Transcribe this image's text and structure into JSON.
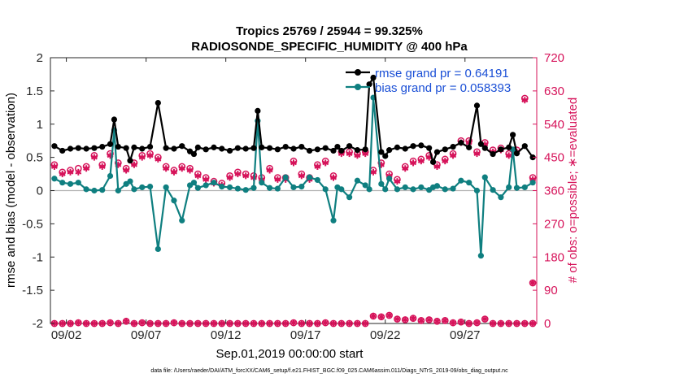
{
  "chart_data": {
    "type": "line",
    "title": "Tropics 25769 / 25944 = 99.325%",
    "subtitle": "RADIOSONDE_SPECIFIC_HUMIDITY @ 400 hPa",
    "xlabel": "Sep.01,2019 00:00:00 start",
    "ylabel_left": "rmse and bias (model - observation)",
    "ylabel_right": "# of obs: o=possible; ∗=evaluated",
    "footer": "data file: /Users/raeder/DAI/ATM_forcXX/CAM6_setup/f.e21.FHIST_BGC.f09_025.CAM6assim.011/Diags_NTrS_2019-09/obs_diag_output.nc",
    "xlim": [
      0.5,
      31.0
    ],
    "ylim_left": [
      -2,
      2
    ],
    "ylim_right": [
      0,
      720
    ],
    "xticks": [
      1.5,
      6.5,
      11.5,
      16.5,
      21.5,
      26.5
    ],
    "xtick_labels": [
      "09/02",
      "09/07",
      "09/12",
      "09/17",
      "09/22",
      "09/27"
    ],
    "yticks_left": [
      -2,
      -1.5,
      -1,
      -0.5,
      0,
      0.5,
      1,
      1.5,
      2
    ],
    "ytick_labels_left": [
      "-2",
      "-1.5",
      "-1",
      "-0.5",
      "0",
      "0.5",
      "1",
      "1.5",
      "2"
    ],
    "yticks_right": [
      0,
      90,
      180,
      270,
      360,
      450,
      540,
      630,
      720
    ],
    "ytick_labels_right": [
      "0",
      "90",
      "180",
      "270",
      "360",
      "450",
      "540",
      "630",
      "720"
    ],
    "legend": [
      {
        "label": "rmse grand pr = 0.64191",
        "color": "#000000"
      },
      {
        "label": "bias grand pr = 0.058393",
        "color": "#0f7f80"
      }
    ],
    "colors": {
      "rmse": "#000000",
      "bias": "#0f7f80",
      "obs": "#d6135a",
      "axis_right": "#d6135a",
      "legend_text": "#1a4fd6",
      "zero_line": "#b3b3b3"
    },
    "series": [
      {
        "name": "rmse",
        "x": [
          0.75,
          1.25,
          1.75,
          2.25,
          2.75,
          3.25,
          3.75,
          4.25,
          4.5,
          4.75,
          5.25,
          5.5,
          5.75,
          6.25,
          6.75,
          7.25,
          7.75,
          8.25,
          8.75,
          9.25,
          9.5,
          9.75,
          10.25,
          10.75,
          11.25,
          11.75,
          12.25,
          12.75,
          13.25,
          13.5,
          13.75,
          14.25,
          14.75,
          15.25,
          15.75,
          16.25,
          16.75,
          17.25,
          17.75,
          18.25,
          18.5,
          18.75,
          19.25,
          19.75,
          20.25,
          20.5,
          20.75,
          21.25,
          21.5,
          21.75,
          22.25,
          22.75,
          23.25,
          23.75,
          24.25,
          24.5,
          24.75,
          25.25,
          25.75,
          26.25,
          26.75,
          27.25,
          27.5,
          27.75,
          28.25,
          28.75,
          29.25,
          29.5,
          29.75,
          30.25,
          30.75
        ],
        "y": [
          0.67,
          0.6,
          0.63,
          0.64,
          0.63,
          0.64,
          0.66,
          0.7,
          1.07,
          0.66,
          0.64,
          0.45,
          0.65,
          0.63,
          0.66,
          1.32,
          0.64,
          0.63,
          0.67,
          0.59,
          0.55,
          0.65,
          0.62,
          0.65,
          0.63,
          0.6,
          0.64,
          0.63,
          0.64,
          1.2,
          0.65,
          0.64,
          0.62,
          0.66,
          0.63,
          0.66,
          0.6,
          0.62,
          0.64,
          0.6,
          0.66,
          0.6,
          0.67,
          0.61,
          0.62,
          1.6,
          1.7,
          0.58,
          0.52,
          0.61,
          0.65,
          0.63,
          0.67,
          0.68,
          0.64,
          0.43,
          0.58,
          0.62,
          0.66,
          0.72,
          0.65,
          1.28,
          0.7,
          0.64,
          0.55,
          0.62,
          0.65,
          0.84,
          0.56,
          0.67,
          0.5
        ]
      },
      {
        "name": "bias",
        "x": [
          0.75,
          1.25,
          1.75,
          2.25,
          2.75,
          3.25,
          3.75,
          4.25,
          4.5,
          4.75,
          5.25,
          5.5,
          5.75,
          6.25,
          6.75,
          7.25,
          7.75,
          8.25,
          8.75,
          9.25,
          9.5,
          9.75,
          10.25,
          10.75,
          11.25,
          11.75,
          12.25,
          12.75,
          13.25,
          13.5,
          13.75,
          14.25,
          14.75,
          15.25,
          15.75,
          16.25,
          16.75,
          17.25,
          17.75,
          18.25,
          18.5,
          18.75,
          19.25,
          19.75,
          20.25,
          20.5,
          20.75,
          21.25,
          21.5,
          21.75,
          22.25,
          22.75,
          23.25,
          23.75,
          24.25,
          24.5,
          24.75,
          25.25,
          25.75,
          26.25,
          26.75,
          27.25,
          27.5,
          27.75,
          28.25,
          28.75,
          29.25,
          29.5,
          29.75,
          30.25,
          30.75
        ],
        "y": [
          0.18,
          0.12,
          0.1,
          0.12,
          0.02,
          0.0,
          0.01,
          0.22,
          0.91,
          0.0,
          0.1,
          0.14,
          0.02,
          0.05,
          0.06,
          -0.88,
          0.05,
          -0.15,
          -0.45,
          0.08,
          0.12,
          0.04,
          0.08,
          0.12,
          0.06,
          0.05,
          0.03,
          0.01,
          0.04,
          1.05,
          0.12,
          0.04,
          0.03,
          0.2,
          0.05,
          0.06,
          0.2,
          0.16,
          0.02,
          -0.45,
          0.05,
          0.02,
          -0.1,
          0.15,
          0.08,
          0.02,
          1.4,
          0.1,
          0.02,
          0.18,
          0.02,
          0.05,
          0.02,
          0.05,
          0.01,
          0.05,
          0.07,
          0.02,
          0.03,
          0.15,
          0.12,
          0.0,
          -0.98,
          0.2,
          0.01,
          -0.1,
          0.05,
          0.62,
          0.04,
          0.05,
          0.12
        ]
      },
      {
        "name": "obs_possible",
        "x": [
          0.75,
          1.25,
          1.75,
          2.25,
          2.75,
          3.25,
          3.75,
          4.25,
          4.75,
          5.25,
          5.75,
          6.25,
          6.75,
          7.25,
          7.75,
          8.25,
          8.75,
          9.25,
          9.75,
          10.25,
          10.75,
          11.25,
          11.75,
          12.25,
          12.75,
          13.25,
          13.75,
          14.25,
          14.75,
          15.25,
          15.75,
          16.25,
          16.75,
          17.25,
          17.75,
          18.25,
          18.75,
          19.25,
          19.75,
          20.25,
          20.75,
          21.25,
          21.75,
          22.25,
          22.75,
          23.25,
          23.75,
          24.25,
          24.75,
          25.25,
          25.75,
          26.25,
          26.75,
          27.25,
          27.75,
          28.25,
          28.75,
          29.25,
          29.75,
          30.25,
          30.75
        ],
        "y": [
          430,
          410,
          415,
          420,
          425,
          455,
          430,
          460,
          435,
          420,
          435,
          455,
          460,
          450,
          425,
          415,
          425,
          420,
          405,
          395,
          385,
          380,
          400,
          410,
          405,
          400,
          395,
          420,
          395,
          395,
          440,
          405,
          395,
          430,
          440,
          400,
          465,
          465,
          460,
          465,
          415,
          435,
          405,
          390,
          425,
          440,
          445,
          455,
          430,
          445,
          460,
          495,
          495,
          465,
          490,
          470,
          475,
          460,
          470,
          610,
          395
        ]
      },
      {
        "name": "obs_evaluated",
        "x": [
          0.75,
          1.25,
          1.75,
          2.25,
          2.75,
          3.25,
          3.75,
          4.25,
          4.75,
          5.25,
          5.75,
          6.25,
          6.75,
          7.25,
          7.75,
          8.25,
          8.75,
          9.25,
          9.75,
          10.25,
          10.75,
          11.25,
          11.75,
          12.25,
          12.75,
          13.25,
          13.75,
          14.25,
          14.75,
          15.25,
          15.75,
          16.25,
          16.75,
          17.25,
          17.75,
          18.25,
          18.75,
          19.25,
          19.75,
          20.25,
          20.75,
          21.25,
          21.75,
          22.25,
          22.75,
          23.25,
          23.75,
          24.25,
          24.75,
          25.25,
          25.75,
          26.25,
          26.75,
          27.25,
          27.75,
          28.25,
          28.75,
          29.25,
          29.75,
          30.25,
          30.75
        ],
        "y": [
          425,
          405,
          410,
          410,
          420,
          450,
          425,
          455,
          430,
          415,
          430,
          450,
          455,
          445,
          420,
          410,
          420,
          415,
          400,
          390,
          380,
          375,
          395,
          405,
          400,
          395,
          390,
          415,
          390,
          390,
          435,
          400,
          390,
          425,
          435,
          395,
          460,
          460,
          455,
          460,
          410,
          430,
          400,
          385,
          420,
          435,
          440,
          450,
          425,
          440,
          455,
          490,
          490,
          460,
          485,
          465,
          470,
          455,
          465,
          605,
          390
        ]
      },
      {
        "name": "obs_possible_bottom",
        "x": [
          0.75,
          1.25,
          1.75,
          2.25,
          2.75,
          3.25,
          3.75,
          4.25,
          4.75,
          5.25,
          5.75,
          6.25,
          6.75,
          7.25,
          7.75,
          8.25,
          8.75,
          9.25,
          9.75,
          10.25,
          10.75,
          11.25,
          11.75,
          12.25,
          12.75,
          13.25,
          13.75,
          14.25,
          14.75,
          15.25,
          15.75,
          16.25,
          16.75,
          17.25,
          17.75,
          18.25,
          18.75,
          19.25,
          19.75,
          20.25,
          20.75,
          21.25,
          21.75,
          22.25,
          22.75,
          23.25,
          23.75,
          24.25,
          24.75,
          25.25,
          25.75,
          26.25,
          26.75,
          27.25,
          27.75,
          28.25,
          28.75,
          29.25,
          29.75,
          30.25,
          30.75
        ],
        "y": [
          0,
          0,
          0,
          2,
          0,
          0,
          0,
          2,
          0,
          6,
          0,
          2,
          0,
          0,
          0,
          2,
          0,
          0,
          0,
          0,
          0,
          0,
          0,
          0,
          0,
          0,
          0,
          0,
          0,
          0,
          2,
          0,
          0,
          0,
          2,
          0,
          0,
          0,
          0,
          0,
          20,
          18,
          22,
          12,
          10,
          14,
          8,
          10,
          6,
          8,
          2,
          4,
          0,
          2,
          12,
          0,
          0,
          0,
          0,
          0,
          0
        ]
      },
      {
        "name": "obs_evaluated_bottom",
        "x": [
          0.75,
          1.25,
          1.75,
          2.25,
          2.75,
          3.25,
          3.75,
          4.25,
          4.75,
          5.25,
          5.75,
          6.25,
          6.75,
          7.25,
          7.75,
          8.25,
          8.75,
          9.25,
          9.75,
          10.25,
          10.75,
          11.25,
          11.75,
          12.25,
          12.75,
          13.25,
          13.75,
          14.25,
          14.75,
          15.25,
          15.75,
          16.25,
          16.75,
          17.25,
          17.75,
          18.25,
          18.75,
          19.25,
          19.75,
          20.25,
          20.75,
          21.25,
          21.75,
          22.25,
          22.75,
          23.25,
          23.75,
          24.25,
          24.75,
          25.25,
          25.75,
          26.25,
          26.75,
          27.25,
          27.75,
          28.25,
          28.75,
          29.25,
          29.75,
          30.25,
          30.75
        ],
        "y": [
          0,
          0,
          0,
          2,
          0,
          0,
          0,
          2,
          0,
          6,
          0,
          2,
          0,
          0,
          0,
          2,
          0,
          0,
          0,
          0,
          0,
          0,
          0,
          0,
          0,
          0,
          0,
          0,
          0,
          0,
          2,
          0,
          0,
          0,
          2,
          0,
          0,
          0,
          0,
          0,
          20,
          18,
          22,
          12,
          10,
          14,
          8,
          10,
          6,
          8,
          2,
          4,
          0,
          2,
          12,
          0,
          0,
          0,
          0,
          0,
          0
        ]
      },
      {
        "name": "obs_extra",
        "x": [
          30.75
        ],
        "y": [
          110
        ]
      }
    ]
  }
}
